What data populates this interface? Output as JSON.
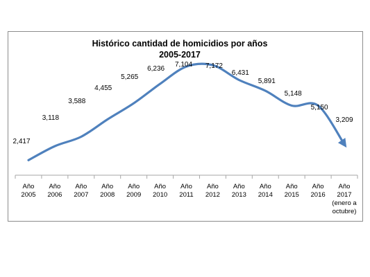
{
  "chart_data": {
    "type": "line",
    "title": "Histórico cantidad de homicidios por años",
    "subtitle": "2005-2017",
    "xlabel": "",
    "ylabel": "",
    "categories": [
      [
        "Año",
        "2005"
      ],
      [
        "Año",
        "2006"
      ],
      [
        "Año",
        "2007"
      ],
      [
        "Año",
        "2008"
      ],
      [
        "Año",
        "2009"
      ],
      [
        "Año",
        "2010"
      ],
      [
        "Año",
        "2011"
      ],
      [
        "Año",
        "2012"
      ],
      [
        "Año",
        "2013"
      ],
      [
        "Año",
        "2014"
      ],
      [
        "Año",
        "2015"
      ],
      [
        "Año",
        "2016"
      ],
      [
        "Año",
        "2017",
        "(enero a",
        "octubre)"
      ]
    ],
    "series": [
      {
        "values": [
          2417,
          3118,
          3588,
          4455,
          5265,
          6236,
          7104,
          7172,
          6431,
          5891,
          5148,
          5150,
          3209
        ],
        "labels": [
          "2,417",
          "3,118",
          "3,588",
          "4,455",
          "5,265",
          "6,236",
          "7,104",
          "7,172",
          "6,431",
          "5,891",
          "5,148",
          "5,150",
          "3,209"
        ],
        "color": "#4f81bd",
        "style": "smoothed trend arrow"
      }
    ],
    "grid": false,
    "legend": "none"
  }
}
